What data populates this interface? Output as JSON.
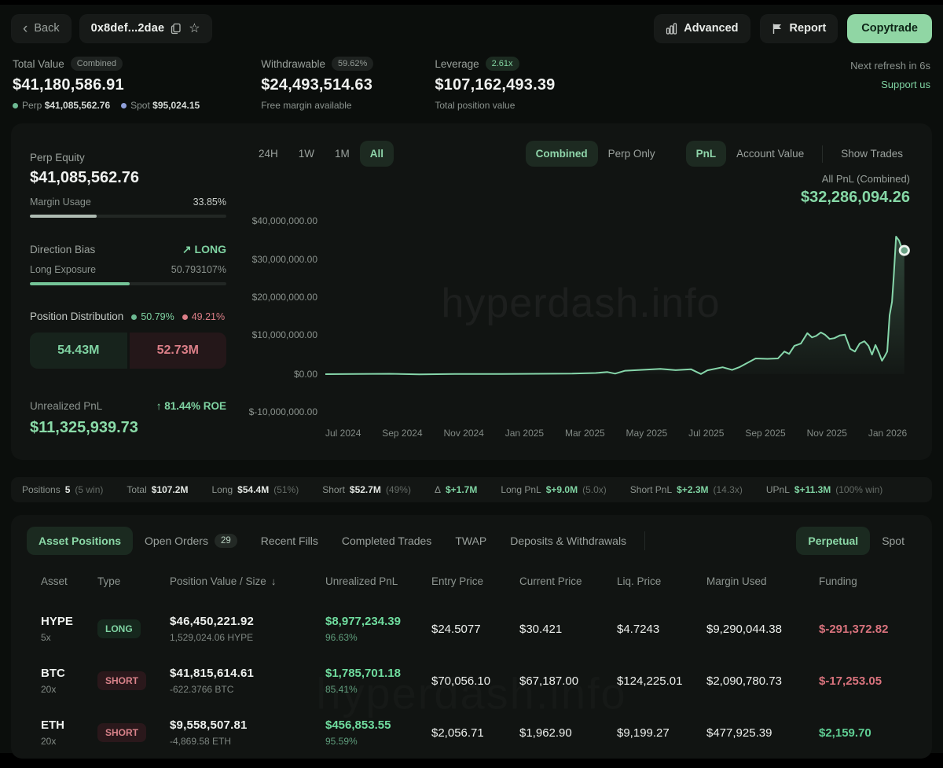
{
  "header": {
    "back_label": "Back",
    "address": "0x8def...2dae",
    "advanced_label": "Advanced",
    "report_label": "Report",
    "copytrade_label": "Copytrade"
  },
  "stats": {
    "total_value": {
      "label": "Total Value",
      "badge": "Combined",
      "value": "$41,180,586.91",
      "perp_label": "Perp",
      "perp_value": "$41,085,562.76",
      "spot_label": "Spot",
      "spot_value": "$95,024.15"
    },
    "withdrawable": {
      "label": "Withdrawable",
      "badge": "59.62%",
      "value": "$24,493,514.63",
      "sub": "Free margin available"
    },
    "leverage": {
      "label": "Leverage",
      "badge": "2.61x",
      "value": "$107,162,493.39",
      "sub": "Total position value"
    },
    "refresh": "Next refresh in 6s",
    "support": "Support us"
  },
  "panel": {
    "perp_equity_label": "Perp Equity",
    "perp_equity_value": "$41,085,562.76",
    "margin_usage_label": "Margin Usage",
    "margin_usage_value": "33.85%",
    "margin_usage_pct": 33.85,
    "direction_bias_label": "Direction Bias",
    "direction_bias_arrow": "↗",
    "direction_bias_value": "LONG",
    "long_exposure_label": "Long Exposure",
    "long_exposure_value": "50.793107%",
    "long_exposure_pct": 50.79,
    "distribution_label": "Position Distribution",
    "dist_long_pct": "50.79%",
    "dist_short_pct": "49.21%",
    "dist_long_value": "54.43M",
    "dist_short_value": "52.73M",
    "upnl_label": "Unrealized PnL",
    "roe_arrow": "↑",
    "roe": "81.44% ROE",
    "upnl_value": "$11,325,939.73"
  },
  "chart_controls": {
    "range_24h": "24H",
    "range_1w": "1W",
    "range_1m": "1M",
    "range_all": "All",
    "mode_combined": "Combined",
    "mode_perp": "Perp Only",
    "view_pnl": "PnL",
    "view_account": "Account Value",
    "show_trades": "Show Trades",
    "pnl_label": "All PnL (Combined)",
    "pnl_value": "$32,286,094.26"
  },
  "chart_data": {
    "type": "line",
    "title": "All PnL (Combined)",
    "series_name": "All PnL (Combined)",
    "unit": "USD (millions)",
    "ylim": [
      -10000000,
      45000000
    ],
    "final_value": 32286094.26,
    "y_labels": [
      "$40,000,000.00",
      "$30,000,000.00",
      "$20,000,000.00",
      "$10,000,000.00",
      "$0.00",
      "$-10,000,000.00"
    ],
    "y_label_tops": [
      5,
      54,
      102,
      150,
      200,
      248
    ],
    "x_labels": [
      "Jul 2024",
      "Sep 2024",
      "Nov 2024",
      "Jan 2025",
      "Mar 2025",
      "May 2025",
      "Jul 2025",
      "Sep 2025",
      "Nov 2025",
      "Jan 2026"
    ],
    "watermark": "hyperdash.info",
    "legend_position": "none",
    "grid": false,
    "points": [
      [
        0.0,
        0.0
      ],
      [
        0.05,
        0.05
      ],
      [
        0.11,
        0.1
      ],
      [
        0.16,
        -0.05
      ],
      [
        0.22,
        0.05
      ],
      [
        0.3,
        0.05
      ],
      [
        0.36,
        0.1
      ],
      [
        0.42,
        0.15
      ],
      [
        0.46,
        0.3
      ],
      [
        0.48,
        0.55
      ],
      [
        0.493,
        0.15
      ],
      [
        0.51,
        0.9
      ],
      [
        0.545,
        1.2
      ],
      [
        0.57,
        1.4
      ],
      [
        0.596,
        1.05
      ],
      [
        0.622,
        1.3
      ],
      [
        0.639,
        0.05
      ],
      [
        0.65,
        1.0
      ],
      [
        0.676,
        1.8
      ],
      [
        0.692,
        1.1
      ],
      [
        0.704,
        1.8
      ],
      [
        0.732,
        4.1
      ],
      [
        0.752,
        4.0
      ],
      [
        0.77,
        4.1
      ],
      [
        0.781,
        5.9
      ],
      [
        0.789,
        5.3
      ],
      [
        0.798,
        7.4
      ],
      [
        0.809,
        8.0
      ],
      [
        0.82,
        10.7
      ],
      [
        0.828,
        9.6
      ],
      [
        0.835,
        10.0
      ],
      [
        0.843,
        10.9
      ],
      [
        0.85,
        10.3
      ],
      [
        0.858,
        9.2
      ],
      [
        0.866,
        9.4
      ],
      [
        0.875,
        10.1
      ],
      [
        0.884,
        10.3
      ],
      [
        0.893,
        6.6
      ],
      [
        0.901,
        5.9
      ],
      [
        0.909,
        8.0
      ],
      [
        0.917,
        8.6
      ],
      [
        0.924,
        7.4
      ],
      [
        0.93,
        5.1
      ],
      [
        0.936,
        7.6
      ],
      [
        0.942,
        5.5
      ],
      [
        0.947,
        3.5
      ],
      [
        0.951,
        4.5
      ],
      [
        0.956,
        5.9
      ],
      [
        0.96,
        15.4
      ],
      [
        0.964,
        18.9
      ],
      [
        0.967,
        25.6
      ],
      [
        0.971,
        35.9
      ],
      [
        0.976,
        34.9
      ],
      [
        0.981,
        32.8
      ],
      [
        0.985,
        32.29
      ]
    ]
  },
  "summary": {
    "items": [
      {
        "label": "Positions",
        "value": "5",
        "extra": "(5 win)"
      },
      {
        "label": "Total",
        "value": "$107.2M",
        "extra": ""
      },
      {
        "label": "Long",
        "value": "$54.4M",
        "extra": "(51%)"
      },
      {
        "label": "Short",
        "value": "$52.7M",
        "extra": "(49%)"
      },
      {
        "label": "Δ",
        "value": "$+1.7M",
        "extra": ""
      },
      {
        "label": "Long PnL",
        "value": "$+9.0M",
        "extra": "(5.0x)"
      },
      {
        "label": "Short PnL",
        "value": "$+2.3M",
        "extra": "(14.3x)"
      },
      {
        "label": "UPnL",
        "value": "$+11.3M",
        "extra": "(100% win)"
      }
    ]
  },
  "tabs": {
    "asset_positions": "Asset Positions",
    "open_orders": "Open Orders",
    "open_orders_badge": "29",
    "recent_fills": "Recent Fills",
    "completed_trades": "Completed Trades",
    "twap": "TWAP",
    "deposits": "Deposits & Withdrawals",
    "perpetual": "Perpetual",
    "spot": "Spot"
  },
  "table": {
    "headers": {
      "asset": "Asset",
      "type": "Type",
      "position": "Position Value / Size",
      "upnl": "Unrealized PnL",
      "entry": "Entry Price",
      "current": "Current Price",
      "liq": "Liq. Price",
      "margin": "Margin Used",
      "funding": "Funding"
    },
    "sort_arrow": "↓",
    "rows": [
      {
        "asset": "HYPE",
        "leverage": "5x",
        "type": "LONG",
        "value": "$46,450,221.92",
        "size": "1,529,024.06 HYPE",
        "upnl": "$8,977,234.39",
        "upnl_pct": "96.63%",
        "entry": "$24.5077",
        "current": "$30.421",
        "liq": "$4.7243",
        "margin": "$9,290,044.38",
        "funding": "$-291,372.82"
      },
      {
        "asset": "BTC",
        "leverage": "20x",
        "type": "SHORT",
        "value": "$41,815,614.61",
        "size": "-622.3766 BTC",
        "upnl": "$1,785,701.18",
        "upnl_pct": "85.41%",
        "entry": "$70,056.10",
        "current": "$67,187.00",
        "liq": "$124,225.01",
        "margin": "$2,090,780.73",
        "funding": "$-17,253.05"
      },
      {
        "asset": "ETH",
        "leverage": "20x",
        "type": "SHORT",
        "value": "$9,558,507.81",
        "size": "-4,869.58 ETH",
        "upnl": "$456,853.55",
        "upnl_pct": "95.59%",
        "entry": "$2,056.71",
        "current": "$1,962.90",
        "liq": "$9,199.27",
        "margin": "$477,925.39",
        "funding": "$2,159.70"
      }
    ]
  },
  "colors": {
    "accent_green": "#7fd3a2",
    "negative_red": "#d9737d",
    "copytrade_bg": "#90d6a4",
    "line_color": "#86d6aa",
    "background": "#0b0e0c",
    "card": "#111412"
  }
}
